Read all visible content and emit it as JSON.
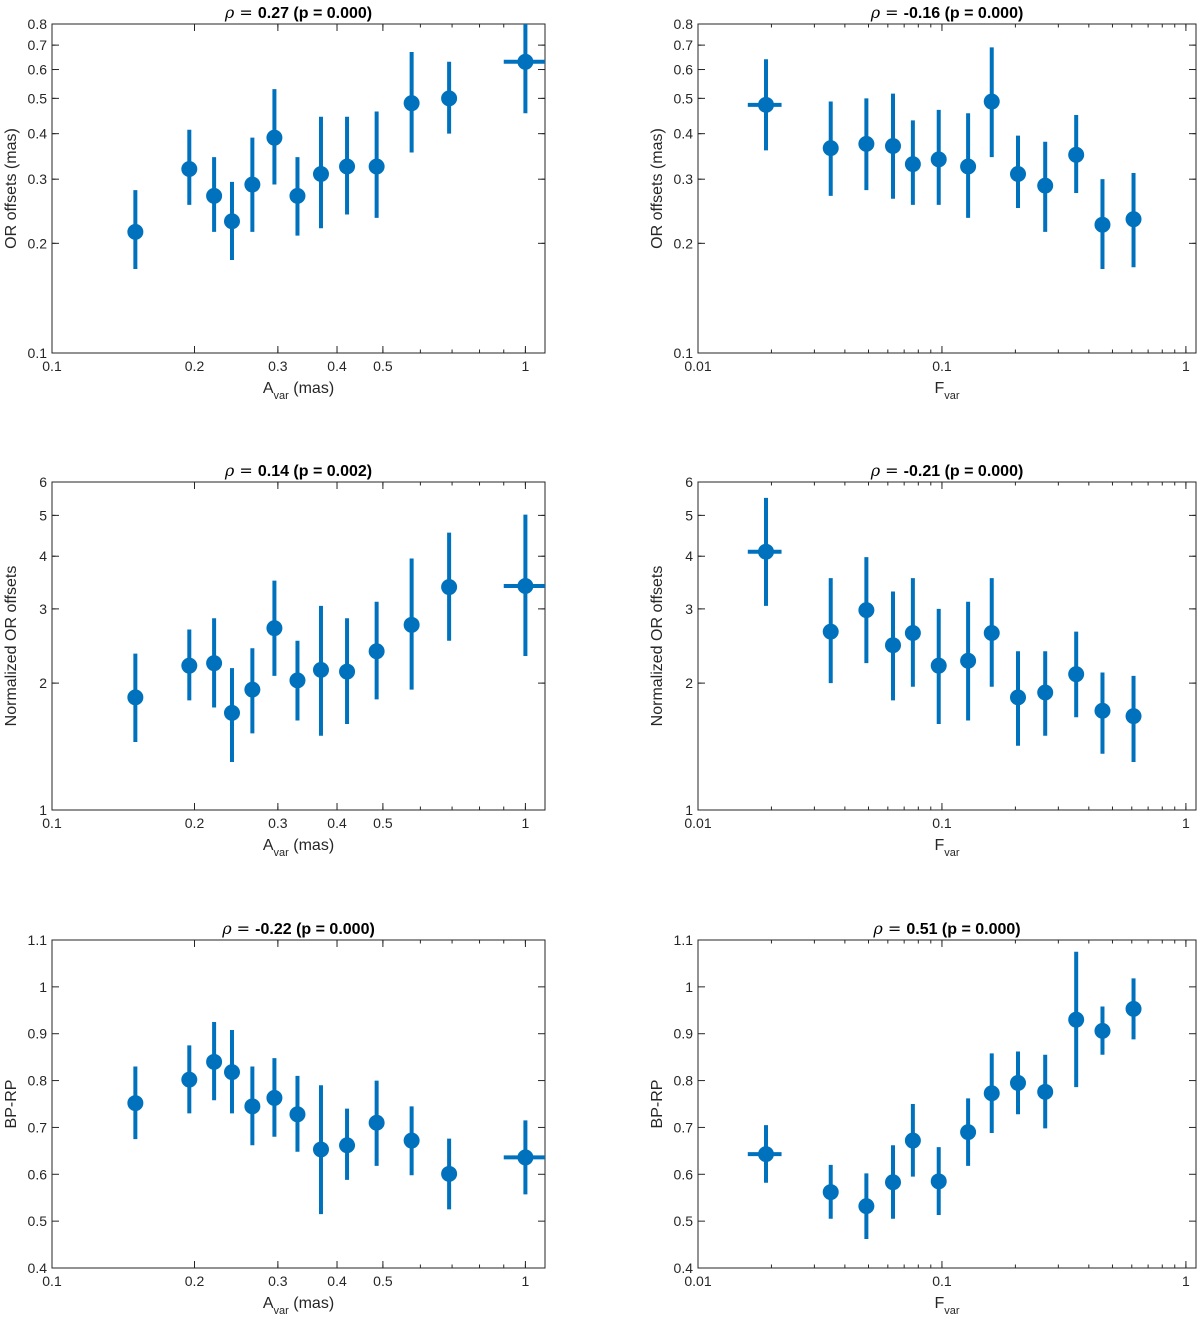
{
  "chart_data": [
    {
      "type": "scatter",
      "title_prefix": "ρ = ",
      "title": "0.27 (p = 0.000)",
      "xlabel_main": "A",
      "xlabel_sub": "var",
      "xlabel_suffix": " (mas)",
      "ylabel": "OR offsets (mas)",
      "xscale": "log",
      "yscale": "log",
      "xlim": [
        0.1,
        1.1
      ],
      "ylim": [
        0.1,
        0.8
      ],
      "xticks": [
        0.1,
        0.2,
        0.3,
        0.4,
        0.5,
        1
      ],
      "xtick_labels": [
        "0.1",
        "0.2",
        "0.3",
        "0.4",
        "0.5",
        "1"
      ],
      "yticks": [
        0.1,
        0.2,
        0.3,
        0.4,
        0.5,
        0.6,
        0.7,
        0.8
      ],
      "ytick_labels": [
        "0.1",
        "0.2",
        "0.3",
        "0.4",
        "0.5",
        "0.6",
        "0.7",
        "0.8"
      ],
      "points": [
        {
          "x": 0.15,
          "y": 0.215,
          "lo": 0.17,
          "hi": 0.28,
          "xlo": 0.15,
          "xhi": 0.15
        },
        {
          "x": 0.195,
          "y": 0.32,
          "lo": 0.255,
          "hi": 0.41,
          "xlo": 0.195,
          "xhi": 0.195
        },
        {
          "x": 0.22,
          "y": 0.27,
          "lo": 0.215,
          "hi": 0.345,
          "xlo": 0.22,
          "xhi": 0.22
        },
        {
          "x": 0.24,
          "y": 0.23,
          "lo": 0.18,
          "hi": 0.295,
          "xlo": 0.24,
          "xhi": 0.24
        },
        {
          "x": 0.265,
          "y": 0.29,
          "lo": 0.215,
          "hi": 0.39,
          "xlo": 0.265,
          "xhi": 0.265
        },
        {
          "x": 0.295,
          "y": 0.39,
          "lo": 0.29,
          "hi": 0.53,
          "xlo": 0.295,
          "xhi": 0.295
        },
        {
          "x": 0.33,
          "y": 0.27,
          "lo": 0.21,
          "hi": 0.345,
          "xlo": 0.33,
          "xhi": 0.33
        },
        {
          "x": 0.37,
          "y": 0.31,
          "lo": 0.22,
          "hi": 0.445,
          "xlo": 0.37,
          "xhi": 0.37
        },
        {
          "x": 0.42,
          "y": 0.325,
          "lo": 0.24,
          "hi": 0.445,
          "xlo": 0.42,
          "xhi": 0.42
        },
        {
          "x": 0.485,
          "y": 0.325,
          "lo": 0.235,
          "hi": 0.46,
          "xlo": 0.485,
          "xhi": 0.485
        },
        {
          "x": 0.575,
          "y": 0.485,
          "lo": 0.355,
          "hi": 0.67,
          "xlo": 0.575,
          "xhi": 0.575
        },
        {
          "x": 0.69,
          "y": 0.5,
          "lo": 0.4,
          "hi": 0.63,
          "xlo": 0.69,
          "xhi": 0.69
        },
        {
          "x": 1.0,
          "y": 0.63,
          "lo": 0.455,
          "hi": 0.84,
          "xlo": 0.9,
          "xhi": 1.1
        }
      ]
    },
    {
      "type": "scatter",
      "title_prefix": "ρ = ",
      "title": "-0.16 (p = 0.000)",
      "xlabel_main": "F",
      "xlabel_sub": "var",
      "xlabel_suffix": "",
      "ylabel": "OR offsets (mas)",
      "xscale": "log",
      "yscale": "log",
      "xlim": [
        0.01,
        1.1
      ],
      "ylim": [
        0.1,
        0.8
      ],
      "xticks": [
        0.01,
        0.1,
        1
      ],
      "xtick_labels": [
        "0.01",
        "0.1",
        "1"
      ],
      "yticks": [
        0.1,
        0.2,
        0.3,
        0.4,
        0.5,
        0.6,
        0.7,
        0.8
      ],
      "ytick_labels": [
        "0.1",
        "0.2",
        "0.3",
        "0.4",
        "0.5",
        "0.6",
        "0.7",
        "0.8"
      ],
      "points": [
        {
          "x": 0.019,
          "y": 0.48,
          "lo": 0.36,
          "hi": 0.64,
          "xlo": 0.016,
          "xhi": 0.022
        },
        {
          "x": 0.035,
          "y": 0.365,
          "lo": 0.27,
          "hi": 0.49,
          "xlo": 0.035,
          "xhi": 0.035
        },
        {
          "x": 0.049,
          "y": 0.375,
          "lo": 0.28,
          "hi": 0.5,
          "xlo": 0.049,
          "xhi": 0.049
        },
        {
          "x": 0.063,
          "y": 0.37,
          "lo": 0.265,
          "hi": 0.515,
          "xlo": 0.063,
          "xhi": 0.063
        },
        {
          "x": 0.076,
          "y": 0.33,
          "lo": 0.255,
          "hi": 0.435,
          "xlo": 0.076,
          "xhi": 0.076
        },
        {
          "x": 0.097,
          "y": 0.34,
          "lo": 0.255,
          "hi": 0.465,
          "xlo": 0.097,
          "xhi": 0.097
        },
        {
          "x": 0.128,
          "y": 0.325,
          "lo": 0.235,
          "hi": 0.455,
          "xlo": 0.128,
          "xhi": 0.128
        },
        {
          "x": 0.16,
          "y": 0.49,
          "lo": 0.345,
          "hi": 0.69,
          "xlo": 0.16,
          "xhi": 0.16
        },
        {
          "x": 0.205,
          "y": 0.31,
          "lo": 0.25,
          "hi": 0.395,
          "xlo": 0.205,
          "xhi": 0.205
        },
        {
          "x": 0.265,
          "y": 0.288,
          "lo": 0.215,
          "hi": 0.38,
          "xlo": 0.265,
          "xhi": 0.265
        },
        {
          "x": 0.355,
          "y": 0.35,
          "lo": 0.275,
          "hi": 0.45,
          "xlo": 0.355,
          "xhi": 0.355
        },
        {
          "x": 0.455,
          "y": 0.225,
          "lo": 0.17,
          "hi": 0.3,
          "xlo": 0.455,
          "xhi": 0.455
        },
        {
          "x": 0.61,
          "y": 0.233,
          "lo": 0.172,
          "hi": 0.312,
          "xlo": 0.61,
          "xhi": 0.61
        }
      ]
    },
    {
      "type": "scatter",
      "title_prefix": "ρ = ",
      "title": "0.14 (p = 0.002)",
      "xlabel_main": "A",
      "xlabel_sub": "var",
      "xlabel_suffix": " (mas)",
      "ylabel": "Normalized OR offsets",
      "xscale": "log",
      "yscale": "log",
      "xlim": [
        0.1,
        1.1
      ],
      "ylim": [
        1,
        6
      ],
      "xticks": [
        0.1,
        0.2,
        0.3,
        0.4,
        0.5,
        1
      ],
      "xtick_labels": [
        "0.1",
        "0.2",
        "0.3",
        "0.4",
        "0.5",
        "1"
      ],
      "yticks": [
        1,
        2,
        3,
        4,
        5,
        6
      ],
      "ytick_labels": [
        "1",
        "2",
        "3",
        "4",
        "5",
        "6"
      ],
      "points": [
        {
          "x": 0.15,
          "y": 1.85,
          "lo": 1.45,
          "hi": 2.35,
          "xlo": 0.15,
          "xhi": 0.15
        },
        {
          "x": 0.195,
          "y": 2.2,
          "lo": 1.82,
          "hi": 2.68,
          "xlo": 0.195,
          "xhi": 0.195
        },
        {
          "x": 0.22,
          "y": 2.23,
          "lo": 1.75,
          "hi": 2.85,
          "xlo": 0.22,
          "xhi": 0.22
        },
        {
          "x": 0.24,
          "y": 1.7,
          "lo": 1.3,
          "hi": 2.17,
          "xlo": 0.24,
          "xhi": 0.24
        },
        {
          "x": 0.265,
          "y": 1.93,
          "lo": 1.52,
          "hi": 2.42,
          "xlo": 0.265,
          "xhi": 0.265
        },
        {
          "x": 0.295,
          "y": 2.7,
          "lo": 2.08,
          "hi": 3.5,
          "xlo": 0.295,
          "xhi": 0.295
        },
        {
          "x": 0.33,
          "y": 2.03,
          "lo": 1.63,
          "hi": 2.52,
          "xlo": 0.33,
          "xhi": 0.33
        },
        {
          "x": 0.37,
          "y": 2.15,
          "lo": 1.5,
          "hi": 3.05,
          "xlo": 0.37,
          "xhi": 0.37
        },
        {
          "x": 0.42,
          "y": 2.13,
          "lo": 1.6,
          "hi": 2.85,
          "xlo": 0.42,
          "xhi": 0.42
        },
        {
          "x": 0.485,
          "y": 2.38,
          "lo": 1.83,
          "hi": 3.12,
          "xlo": 0.485,
          "xhi": 0.485
        },
        {
          "x": 0.575,
          "y": 2.75,
          "lo": 1.93,
          "hi": 3.95,
          "xlo": 0.575,
          "xhi": 0.575
        },
        {
          "x": 0.69,
          "y": 3.38,
          "lo": 2.52,
          "hi": 4.55,
          "xlo": 0.69,
          "xhi": 0.69
        },
        {
          "x": 1.0,
          "y": 3.4,
          "lo": 2.32,
          "hi": 5.02,
          "xlo": 0.9,
          "xhi": 1.1
        }
      ]
    },
    {
      "type": "scatter",
      "title_prefix": "ρ = ",
      "title": "-0.21 (p = 0.000)",
      "xlabel_main": "F",
      "xlabel_sub": "var",
      "xlabel_suffix": "",
      "ylabel": "Normalized OR offsets",
      "xscale": "log",
      "yscale": "log",
      "xlim": [
        0.01,
        1.1
      ],
      "ylim": [
        1,
        6
      ],
      "xticks": [
        0.01,
        0.1,
        1
      ],
      "xtick_labels": [
        "0.01",
        "0.1",
        "1"
      ],
      "yticks": [
        1,
        2,
        3,
        4,
        5,
        6
      ],
      "ytick_labels": [
        "1",
        "2",
        "3",
        "4",
        "5",
        "6"
      ],
      "points": [
        {
          "x": 0.019,
          "y": 4.1,
          "lo": 3.05,
          "hi": 5.5,
          "xlo": 0.016,
          "xhi": 0.022
        },
        {
          "x": 0.035,
          "y": 2.65,
          "lo": 2.0,
          "hi": 3.55,
          "xlo": 0.035,
          "xhi": 0.035
        },
        {
          "x": 0.049,
          "y": 2.98,
          "lo": 2.23,
          "hi": 3.98,
          "xlo": 0.049,
          "xhi": 0.049
        },
        {
          "x": 0.063,
          "y": 2.46,
          "lo": 1.82,
          "hi": 3.3,
          "xlo": 0.063,
          "xhi": 0.063
        },
        {
          "x": 0.076,
          "y": 2.63,
          "lo": 1.96,
          "hi": 3.55,
          "xlo": 0.076,
          "xhi": 0.076
        },
        {
          "x": 0.097,
          "y": 2.2,
          "lo": 1.6,
          "hi": 3.0,
          "xlo": 0.097,
          "xhi": 0.097
        },
        {
          "x": 0.128,
          "y": 2.26,
          "lo": 1.63,
          "hi": 3.12,
          "xlo": 0.128,
          "xhi": 0.128
        },
        {
          "x": 0.16,
          "y": 2.63,
          "lo": 1.96,
          "hi": 3.55,
          "xlo": 0.16,
          "xhi": 0.16
        },
        {
          "x": 0.205,
          "y": 1.85,
          "lo": 1.42,
          "hi": 2.38,
          "xlo": 0.205,
          "xhi": 0.205
        },
        {
          "x": 0.265,
          "y": 1.9,
          "lo": 1.5,
          "hi": 2.38,
          "xlo": 0.265,
          "xhi": 0.265
        },
        {
          "x": 0.355,
          "y": 2.1,
          "lo": 1.66,
          "hi": 2.65,
          "xlo": 0.355,
          "xhi": 0.355
        },
        {
          "x": 0.455,
          "y": 1.72,
          "lo": 1.36,
          "hi": 2.12,
          "xlo": 0.455,
          "xhi": 0.455
        },
        {
          "x": 0.61,
          "y": 1.67,
          "lo": 1.3,
          "hi": 2.08,
          "xlo": 0.61,
          "xhi": 0.61
        }
      ]
    },
    {
      "type": "scatter",
      "title_prefix": "ρ = ",
      "title": "-0.22 (p = 0.000)",
      "xlabel_main": "A",
      "xlabel_sub": "var",
      "xlabel_suffix": " (mas)",
      "ylabel": "BP-RP",
      "xscale": "log",
      "yscale": "linear",
      "xlim": [
        0.1,
        1.1
      ],
      "ylim": [
        0.4,
        1.1
      ],
      "xticks": [
        0.1,
        0.2,
        0.3,
        0.4,
        0.5,
        1
      ],
      "xtick_labels": [
        "0.1",
        "0.2",
        "0.3",
        "0.4",
        "0.5",
        "1"
      ],
      "yticks": [
        0.4,
        0.5,
        0.6,
        0.7,
        0.8,
        0.9,
        1.0,
        1.1
      ],
      "ytick_labels": [
        "0.4",
        "0.5",
        "0.6",
        "0.7",
        "0.8",
        "0.9",
        "1",
        "1.1"
      ],
      "points": [
        {
          "x": 0.15,
          "y": 0.752,
          "lo": 0.675,
          "hi": 0.83,
          "xlo": 0.15,
          "xhi": 0.15
        },
        {
          "x": 0.195,
          "y": 0.802,
          "lo": 0.73,
          "hi": 0.875,
          "xlo": 0.195,
          "xhi": 0.195
        },
        {
          "x": 0.22,
          "y": 0.84,
          "lo": 0.758,
          "hi": 0.925,
          "xlo": 0.22,
          "xhi": 0.22
        },
        {
          "x": 0.24,
          "y": 0.818,
          "lo": 0.73,
          "hi": 0.908,
          "xlo": 0.24,
          "xhi": 0.24
        },
        {
          "x": 0.265,
          "y": 0.745,
          "lo": 0.662,
          "hi": 0.83,
          "xlo": 0.265,
          "xhi": 0.265
        },
        {
          "x": 0.295,
          "y": 0.763,
          "lo": 0.68,
          "hi": 0.848,
          "xlo": 0.295,
          "xhi": 0.295
        },
        {
          "x": 0.33,
          "y": 0.728,
          "lo": 0.648,
          "hi": 0.81,
          "xlo": 0.33,
          "xhi": 0.33
        },
        {
          "x": 0.37,
          "y": 0.653,
          "lo": 0.515,
          "hi": 0.79,
          "xlo": 0.37,
          "xhi": 0.37
        },
        {
          "x": 0.42,
          "y": 0.662,
          "lo": 0.588,
          "hi": 0.74,
          "xlo": 0.42,
          "xhi": 0.42
        },
        {
          "x": 0.485,
          "y": 0.71,
          "lo": 0.618,
          "hi": 0.8,
          "xlo": 0.485,
          "xhi": 0.485
        },
        {
          "x": 0.575,
          "y": 0.672,
          "lo": 0.598,
          "hi": 0.745,
          "xlo": 0.575,
          "xhi": 0.575
        },
        {
          "x": 0.69,
          "y": 0.601,
          "lo": 0.525,
          "hi": 0.676,
          "xlo": 0.69,
          "xhi": 0.69
        },
        {
          "x": 1.0,
          "y": 0.636,
          "lo": 0.557,
          "hi": 0.715,
          "xlo": 0.9,
          "xhi": 1.1
        }
      ]
    },
    {
      "type": "scatter",
      "title_prefix": "ρ = ",
      "title": "0.51 (p = 0.000)",
      "xlabel_main": "F",
      "xlabel_sub": "var",
      "xlabel_suffix": "",
      "ylabel": "BP-RP",
      "xscale": "log",
      "yscale": "linear",
      "xlim": [
        0.01,
        1.1
      ],
      "ylim": [
        0.4,
        1.1
      ],
      "xticks": [
        0.01,
        0.1,
        1
      ],
      "xtick_labels": [
        "0.01",
        "0.1",
        "1"
      ],
      "yticks": [
        0.4,
        0.5,
        0.6,
        0.7,
        0.8,
        0.9,
        1.0,
        1.1
      ],
      "ytick_labels": [
        "0.4",
        "0.5",
        "0.6",
        "0.7",
        "0.8",
        "0.9",
        "1",
        "1.1"
      ],
      "points": [
        {
          "x": 0.019,
          "y": 0.643,
          "lo": 0.582,
          "hi": 0.705,
          "xlo": 0.016,
          "xhi": 0.022
        },
        {
          "x": 0.035,
          "y": 0.562,
          "lo": 0.505,
          "hi": 0.62,
          "xlo": 0.035,
          "xhi": 0.035
        },
        {
          "x": 0.049,
          "y": 0.532,
          "lo": 0.462,
          "hi": 0.602,
          "xlo": 0.049,
          "xhi": 0.049
        },
        {
          "x": 0.063,
          "y": 0.583,
          "lo": 0.505,
          "hi": 0.662,
          "xlo": 0.063,
          "xhi": 0.063
        },
        {
          "x": 0.076,
          "y": 0.672,
          "lo": 0.595,
          "hi": 0.75,
          "xlo": 0.076,
          "xhi": 0.076
        },
        {
          "x": 0.097,
          "y": 0.585,
          "lo": 0.513,
          "hi": 0.658,
          "xlo": 0.097,
          "xhi": 0.097
        },
        {
          "x": 0.128,
          "y": 0.69,
          "lo": 0.618,
          "hi": 0.762,
          "xlo": 0.128,
          "xhi": 0.128
        },
        {
          "x": 0.16,
          "y": 0.773,
          "lo": 0.688,
          "hi": 0.858,
          "xlo": 0.16,
          "xhi": 0.16
        },
        {
          "x": 0.205,
          "y": 0.795,
          "lo": 0.728,
          "hi": 0.862,
          "xlo": 0.205,
          "xhi": 0.205
        },
        {
          "x": 0.265,
          "y": 0.776,
          "lo": 0.698,
          "hi": 0.855,
          "xlo": 0.265,
          "xhi": 0.265
        },
        {
          "x": 0.355,
          "y": 0.93,
          "lo": 0.786,
          "hi": 1.075,
          "xlo": 0.355,
          "xhi": 0.355
        },
        {
          "x": 0.455,
          "y": 0.906,
          "lo": 0.855,
          "hi": 0.958,
          "xlo": 0.455,
          "xhi": 0.455
        },
        {
          "x": 0.61,
          "y": 0.953,
          "lo": 0.888,
          "hi": 1.018,
          "xlo": 0.61,
          "xhi": 0.61
        }
      ]
    }
  ],
  "colors": {
    "marker": "#0072BD",
    "axis": "#262626",
    "background": "#ffffff"
  }
}
